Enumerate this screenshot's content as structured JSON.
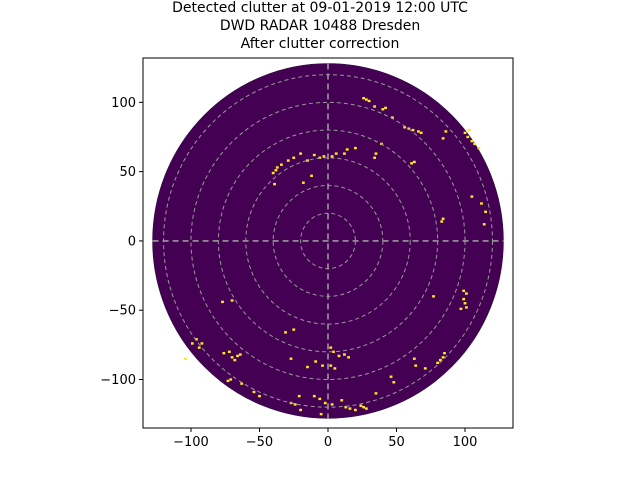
{
  "chart_data": {
    "type": "heatmap",
    "title_lines": [
      "Detected clutter at 09-01-2019 12:00 UTC",
      "DWD RADAR 10488 Dresden",
      "After clutter correction"
    ],
    "xlabel": "",
    "ylabel": "",
    "xlim": [
      -135,
      135
    ],
    "ylim": [
      -135,
      132
    ],
    "xticks": [
      -100,
      -50,
      0,
      50,
      100
    ],
    "yticks": [
      100,
      50,
      0,
      -50,
      -100
    ],
    "range_rings": [
      20,
      40,
      60,
      80,
      100,
      120
    ],
    "max_range": 128,
    "colors": {
      "background": "#440154",
      "clutter": "#fde725",
      "grid": "#999999"
    },
    "clutter_points": [
      [
        26,
        103
      ],
      [
        28,
        102
      ],
      [
        30,
        101
      ],
      [
        34,
        97
      ],
      [
        40,
        95
      ],
      [
        42,
        96
      ],
      [
        47,
        89
      ],
      [
        56,
        82
      ],
      [
        59,
        81
      ],
      [
        62,
        80
      ],
      [
        66,
        79
      ],
      [
        68,
        78
      ],
      [
        84,
        74
      ],
      [
        86,
        79
      ],
      [
        100,
        78
      ],
      [
        102,
        75
      ],
      [
        103,
        80
      ],
      [
        105,
        72
      ],
      [
        107,
        70
      ],
      [
        110,
        67
      ],
      [
        39,
        70
      ],
      [
        35,
        63
      ],
      [
        34,
        60
      ],
      [
        20,
        67
      ],
      [
        14,
        66
      ],
      [
        12,
        63
      ],
      [
        6,
        63
      ],
      [
        3,
        61
      ],
      [
        -3,
        61
      ],
      [
        -6,
        60
      ],
      [
        -10,
        62
      ],
      [
        -20,
        63
      ],
      [
        -25,
        60
      ],
      [
        -29,
        58
      ],
      [
        -34,
        55
      ],
      [
        -38,
        51
      ],
      [
        -40,
        49
      ],
      [
        -37,
        53
      ],
      [
        -15,
        58
      ],
      [
        -12,
        47
      ],
      [
        -18,
        42
      ],
      [
        -39,
        41
      ],
      [
        61,
        56
      ],
      [
        63,
        57
      ],
      [
        105,
        32
      ],
      [
        112,
        27
      ],
      [
        115,
        21
      ],
      [
        114,
        12
      ],
      [
        83,
        14
      ],
      [
        84,
        16
      ],
      [
        99,
        -42
      ],
      [
        100,
        -45
      ],
      [
        101,
        -48
      ],
      [
        97,
        -49
      ],
      [
        101,
        -38
      ],
      [
        77,
        -40
      ],
      [
        99,
        -36
      ],
      [
        84,
        -84
      ],
      [
        82,
        -86
      ],
      [
        80,
        -88
      ],
      [
        85,
        -81
      ],
      [
        71,
        -92
      ],
      [
        64,
        -90
      ],
      [
        63,
        -85
      ],
      [
        46,
        -98
      ],
      [
        48,
        -102
      ],
      [
        35,
        -110
      ],
      [
        26,
        -120
      ],
      [
        28,
        -121
      ],
      [
        24,
        -119
      ],
      [
        20,
        -122
      ],
      [
        16,
        -121
      ],
      [
        13,
        -120
      ],
      [
        10,
        -115
      ],
      [
        3,
        -118
      ],
      [
        -2,
        -117
      ],
      [
        -6,
        -114
      ],
      [
        -10,
        -112
      ],
      [
        -21,
        -112
      ],
      [
        -27,
        -117
      ],
      [
        -24,
        -118
      ],
      [
        -20,
        -122
      ],
      [
        -5,
        -125
      ],
      [
        2,
        -77
      ],
      [
        4,
        -80
      ],
      [
        8,
        -83
      ],
      [
        12,
        -82
      ],
      [
        15,
        -84
      ],
      [
        2,
        -90
      ],
      [
        5,
        -92
      ],
      [
        -4,
        -90
      ],
      [
        -9,
        -87
      ],
      [
        -15,
        -91
      ],
      [
        -27,
        -85
      ],
      [
        -31,
        -66
      ],
      [
        -25,
        -64
      ],
      [
        -70,
        -84
      ],
      [
        -68,
        -86
      ],
      [
        -66,
        -83
      ],
      [
        -64,
        -82
      ],
      [
        -72,
        -80
      ],
      [
        -76,
        -81
      ],
      [
        -77,
        -44
      ],
      [
        -70,
        -43
      ],
      [
        -104,
        -85
      ],
      [
        -99,
        -74
      ],
      [
        -96,
        -71
      ],
      [
        -92,
        -74
      ],
      [
        -94,
        -77
      ],
      [
        -71,
        -100
      ],
      [
        -73,
        -101
      ],
      [
        -63,
        -103
      ],
      [
        -54,
        -109
      ],
      [
        -50,
        -112
      ]
    ]
  }
}
